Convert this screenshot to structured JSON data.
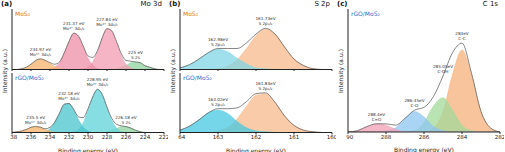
{
  "chart_data": [
    {
      "type": "area",
      "label": "(a)",
      "title": "Mo 3d",
      "x_label": "Binding energy (eV)",
      "y_label": "Intensity (a.u.)",
      "xlim": [
        238,
        222
      ],
      "xticks": [
        238,
        236,
        234,
        232,
        230,
        228,
        226,
        224,
        222
      ],
      "ylim": [
        0,
        80
      ],
      "tick_labels": "x",
      "x": [
        222,
        222.5,
        223,
        223.5,
        224,
        224.5,
        225,
        225.5,
        226,
        226.5,
        227,
        227.5,
        228,
        228.5,
        229,
        229.5,
        230,
        230.5,
        231,
        231.5,
        232,
        232.5,
        233,
        233.5,
        234,
        234.5,
        235,
        235.5,
        236,
        236.5,
        237,
        237.5,
        238
      ],
      "panels": [
        {
          "title": "MoS₂",
          "color": "#e8761e",
          "series": [
            {
              "color": "#8fd19e",
              "annotation": [
                "225 eV",
                "S 2s"
              ],
              "values": [
                0,
                0,
                1,
                3,
                5,
                9,
                10,
                9,
                5,
                3,
                1,
                0,
                0,
                0,
                0,
                0,
                0,
                0,
                0,
                0,
                0,
                0,
                0,
                0,
                0,
                0,
                0,
                0,
                0,
                0,
                0,
                0,
                0
              ]
            },
            {
              "color": "#f19cb1",
              "annotation": [
                "227.84 eV",
                "Mo⁴⁺ 3d₅/₂"
              ],
              "values": [
                0,
                0,
                0,
                0,
                0,
                0,
                0,
                2,
                7,
                18,
                36,
                51,
                54,
                42,
                24,
                10,
                3,
                1,
                0,
                0,
                0,
                0,
                0,
                0,
                0,
                0,
                0,
                0,
                0,
                0,
                0,
                0,
                0
              ]
            },
            {
              "color": "#ee8fa6",
              "annotation": [
                "231.37 eV",
                "Mo⁴⁺ 3d₃/₂"
              ],
              "values": [
                0,
                0,
                0,
                0,
                0,
                0,
                0,
                0,
                0,
                0,
                0,
                0,
                0,
                0,
                1,
                6,
                15,
                30,
                44,
                48,
                37,
                22,
                9,
                3,
                1,
                0,
                0,
                0,
                0,
                0,
                0,
                0,
                0
              ]
            },
            {
              "color": "#f6b26b",
              "annotation": [
                "234.97 eV",
                "Mo⁶⁺ 3d₃/₂"
              ],
              "values": [
                0,
                0,
                0,
                0,
                0,
                0,
                0,
                0,
                0,
                0,
                0,
                0,
                0,
                0,
                0,
                0,
                0,
                0,
                0,
                0,
                0,
                0,
                1,
                4,
                8,
                12,
                14,
                12,
                7,
                3,
                1,
                0,
                0
              ]
            },
            {
              "type": "line",
              "color": "#666666",
              "values": [
                0,
                0,
                1,
                3,
                5,
                9,
                10,
                11,
                12,
                21,
                37,
                51,
                54,
                42,
                25,
                16,
                18,
                31,
                44,
                48,
                37,
                22,
                10,
                7,
                9,
                12,
                14,
                12,
                7,
                3,
                1,
                0,
                0
              ]
            }
          ]
        },
        {
          "title": "rGO/MoS₂",
          "color": "#1f6fd0",
          "series": [
            {
              "color": "#8fd19e",
              "annotation": [
                "226.18 eV",
                "S 2s"
              ],
              "values": [
                0,
                0,
                0,
                0,
                0,
                1,
                3,
                6,
                8,
                8,
                5,
                3,
                1,
                0,
                0,
                0,
                0,
                0,
                0,
                0,
                0,
                0,
                0,
                0,
                0,
                0,
                0,
                0,
                0,
                0,
                0,
                0,
                0
              ]
            },
            {
              "color": "#5fd3d8",
              "annotation": [
                "228.95 eV",
                "Mo⁴⁺ 3d₅/₂"
              ],
              "values": [
                0,
                0,
                0,
                0,
                0,
                0,
                0,
                0,
                0,
                1,
                6,
                16,
                33,
                51,
                58,
                48,
                30,
                13,
                4,
                1,
                0,
                0,
                0,
                0,
                0,
                0,
                0,
                0,
                0,
                0,
                0,
                0,
                0
              ]
            },
            {
              "color": "#48c4cc",
              "annotation": [
                "232.18 eV",
                "Mo⁴⁺ 3d₃/₂"
              ],
              "values": [
                0,
                0,
                0,
                0,
                0,
                0,
                0,
                0,
                0,
                0,
                0,
                0,
                0,
                0,
                0,
                0,
                2,
                7,
                17,
                30,
                39,
                38,
                26,
                14,
                5,
                1,
                0,
                0,
                0,
                0,
                0,
                0,
                0
              ]
            },
            {
              "color": "#f6b26b",
              "annotation": [
                "235.5 eV",
                "Mo⁶⁺ 3d₃/₂"
              ],
              "values": [
                0,
                0,
                0,
                0,
                0,
                0,
                0,
                0,
                0,
                0,
                0,
                0,
                0,
                0,
                0,
                0,
                0,
                0,
                0,
                0,
                0,
                0,
                0,
                0,
                2,
                4,
                7,
                8,
                7,
                4,
                2,
                1,
                0
              ]
            },
            {
              "type": "line",
              "color": "#666666",
              "values": [
                0,
                0,
                0,
                0,
                0,
                1,
                3,
                6,
                8,
                9,
                11,
                19,
                34,
                51,
                58,
                48,
                32,
                20,
                21,
                31,
                39,
                38,
                26,
                14,
                7,
                5,
                7,
                8,
                7,
                4,
                2,
                1,
                0
              ]
            }
          ]
        }
      ]
    },
    {
      "type": "area",
      "label": "(b)",
      "title": "S 2p",
      "x_label": "Binding energy (eV)",
      "y_label": "Intensity (a.u.)",
      "xlim": [
        164,
        160
      ],
      "xticks": [
        164,
        163,
        162,
        161,
        160
      ],
      "ylim": [
        0,
        75
      ],
      "tick_labels": "x",
      "x": [
        160,
        160.25,
        160.5,
        160.75,
        161,
        161.25,
        161.5,
        161.75,
        162,
        162.25,
        162.5,
        162.75,
        163,
        163.25,
        163.5,
        163.75,
        164
      ],
      "panels": [
        {
          "title": "MoS₂",
          "color": "#e8761e",
          "series": [
            {
              "color": "#f7b98b",
              "annotation": [
                "161.73eV",
                "S 2p₃/₂"
              ],
              "values": [
                0,
                0,
                1,
                5,
                13,
                28,
                44,
                50,
                42,
                26,
                12,
                4,
                1,
                0,
                0,
                0,
                0
              ]
            },
            {
              "color": "#7fd6e6",
              "annotation": [
                "162.98eV",
                "S 2p₁/₂"
              ],
              "values": [
                0,
                0,
                0,
                0,
                0,
                0,
                0,
                1,
                2,
                7,
                14,
                22,
                25,
                21,
                13,
                6,
                2
              ]
            },
            {
              "type": "line",
              "color": "#666666",
              "values": [
                0,
                0,
                1,
                5,
                13,
                28,
                44,
                51,
                44,
                33,
                26,
                26,
                26,
                21,
                13,
                6,
                2
              ]
            }
          ]
        },
        {
          "title": "rGO/MoS₂",
          "color": "#1f6fd0",
          "series": [
            {
              "color": "#f7b98b",
              "annotation": [
                "161.84eV",
                "S 2p₃/₂"
              ],
              "values": [
                0,
                0,
                1,
                3,
                9,
                21,
                38,
                49,
                47,
                33,
                17,
                6,
                2,
                0,
                0,
                0,
                0
              ]
            },
            {
              "color": "#45c8e0",
              "annotation": [
                "163.02eV",
                "S 2p₁/₂"
              ],
              "values": [
                0,
                0,
                0,
                0,
                0,
                0,
                0,
                1,
                2,
                6,
                14,
                24,
                28,
                25,
                16,
                8,
                3
              ]
            },
            {
              "type": "line",
              "color": "#666666",
              "values": [
                0,
                0,
                1,
                3,
                9,
                21,
                38,
                50,
                49,
                39,
                31,
                30,
                30,
                25,
                16,
                8,
                3
              ]
            }
          ]
        }
      ]
    },
    {
      "type": "area",
      "label": "(c)",
      "title": "C 1s",
      "x_label": "Binding energy (eV)",
      "y_label": "Intensity (a.u.)",
      "xlim": [
        290,
        282
      ],
      "xticks": [
        290,
        288,
        286,
        284,
        282
      ],
      "ylim": [
        0,
        90
      ],
      "tick_labels": "x",
      "x": [
        282,
        282.5,
        283,
        283.5,
        284,
        284.5,
        285,
        285.5,
        286,
        286.5,
        287,
        287.5,
        288,
        288.5,
        289,
        289.5,
        290
      ],
      "panels": [
        {
          "title": "rGO/MoS₂",
          "color": "#1f6fd0",
          "series": [
            {
              "color": "#f5b07a",
              "annotation": [
                "284eV",
                "C-C"
              ],
              "values": [
                0,
                3,
                15,
                42,
                60,
                42,
                15,
                3,
                0,
                0,
                0,
                0,
                0,
                0,
                0,
                0,
                0
              ]
            },
            {
              "color": "#a3d99a",
              "annotation": [
                "285.05eV",
                "C-OH"
              ],
              "values": [
                0,
                0,
                0,
                1,
                5,
                16,
                25,
                19,
                7,
                1,
                0,
                0,
                0,
                0,
                0,
                0,
                0
              ]
            },
            {
              "color": "#8ec5f0",
              "annotation": [
                "286.45eV",
                "C-O"
              ],
              "values": [
                0,
                0,
                0,
                0,
                0,
                0,
                1,
                4,
                11,
                15,
                10,
                3,
                1,
                0,
                0,
                0,
                0
              ]
            },
            {
              "color": "#f2a0b5",
              "annotation": [
                "288.4eV",
                "C=O"
              ],
              "values": [
                0,
                0,
                0,
                0,
                0,
                0,
                0,
                0,
                0,
                0,
                0,
                2,
                5,
                6,
                4,
                1,
                0
              ]
            },
            {
              "type": "line",
              "color": "#666666",
              "values": [
                0,
                3,
                15,
                43,
                65,
                58,
                41,
                26,
                18,
                16,
                10,
                5,
                6,
                6,
                4,
                1,
                0
              ]
            }
          ]
        }
      ]
    }
  ]
}
